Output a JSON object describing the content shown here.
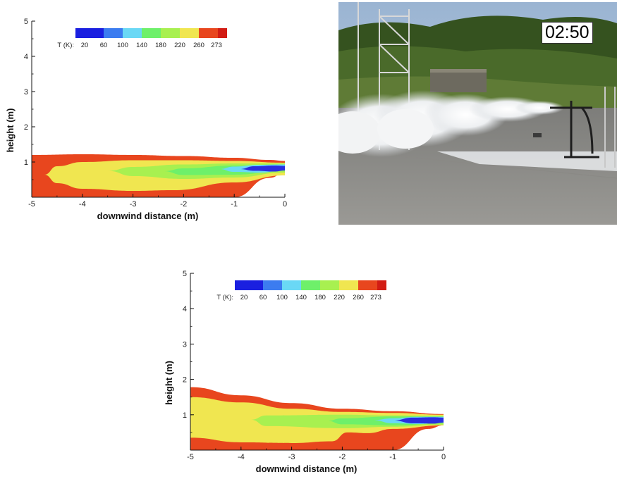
{
  "chart_data": [
    {
      "type": "heatmap",
      "xlabel": "downwind distance (m)",
      "ylabel": "height (m)",
      "xlim": [
        -5,
        0
      ],
      "ylim": [
        0,
        5
      ],
      "xticks": [
        -5,
        -4,
        -3,
        -2,
        -1,
        0
      ],
      "yticks": [
        1,
        2,
        3,
        4,
        5
      ],
      "legend": {
        "title": "T (K):",
        "levels": [
          20,
          60,
          100,
          140,
          180,
          220,
          260,
          273
        ],
        "colors": [
          "#1a1fe0",
          "#3c7cf0",
          "#6ad8f5",
          "#6ef06a",
          "#a8f050",
          "#f0e650",
          "#e8461e",
          "#d21c14"
        ],
        "placement": "top-left"
      },
      "contours": [
        {
          "level": 273,
          "color": "#e8461e",
          "top": [
            [
              -5,
              1.2
            ],
            [
              -4,
              1.22
            ],
            [
              -3,
              1.2
            ],
            [
              -2,
              1.17
            ],
            [
              -1,
              1.12
            ],
            [
              -0.3,
              1.06
            ],
            [
              0,
              1.03
            ]
          ],
          "bottom": [
            [
              -5,
              0.0
            ],
            [
              -4,
              0.0
            ],
            [
              -3,
              0.0
            ],
            [
              -2,
              0.0
            ],
            [
              -1,
              0.0
            ],
            [
              -0.3,
              0.55
            ],
            [
              0,
              0.7
            ]
          ]
        },
        {
          "level": 260,
          "color": "#f0e650",
          "top": [
            [
              -4.75,
              0.64
            ],
            [
              -4.5,
              0.88
            ],
            [
              -4,
              1.0
            ],
            [
              -3,
              1.05
            ],
            [
              -2,
              1.05
            ],
            [
              -1,
              1.03
            ],
            [
              0,
              0.98
            ]
          ],
          "bottom": [
            [
              -4.75,
              0.64
            ],
            [
              -4.5,
              0.4
            ],
            [
              -4,
              0.24
            ],
            [
              -3,
              0.18
            ],
            [
              -2.2,
              0.2
            ],
            [
              -1,
              0.42
            ],
            [
              0,
              0.62
            ]
          ]
        },
        {
          "level": 220,
          "color": "#a8f050",
          "top": [
            [
              -3.5,
              0.75
            ],
            [
              -3,
              0.86
            ],
            [
              -2,
              0.93
            ],
            [
              -1,
              0.96
            ],
            [
              0,
              0.96
            ]
          ],
          "bottom": [
            [
              -3.5,
              0.75
            ],
            [
              -3,
              0.6
            ],
            [
              -2,
              0.52
            ],
            [
              -1,
              0.56
            ],
            [
              0,
              0.7
            ]
          ]
        },
        {
          "level": 180,
          "color": "#6ef06a",
          "top": [
            [
              -2.4,
              0.74
            ],
            [
              -2,
              0.82
            ],
            [
              -1,
              0.9
            ],
            [
              0,
              0.93
            ]
          ],
          "bottom": [
            [
              -2.4,
              0.74
            ],
            [
              -2,
              0.63
            ],
            [
              -1,
              0.64
            ],
            [
              0,
              0.75
            ]
          ]
        },
        {
          "level": 100,
          "color": "#6ad8f5",
          "top": [
            [
              -1.3,
              0.8
            ],
            [
              -1,
              0.87
            ],
            [
              -0.5,
              0.92
            ],
            [
              0,
              0.93
            ]
          ],
          "bottom": [
            [
              -1.3,
              0.8
            ],
            [
              -1,
              0.72
            ],
            [
              -0.5,
              0.7
            ],
            [
              0,
              0.76
            ]
          ]
        },
        {
          "level": 20,
          "color": "#2a2ee0",
          "top": [
            [
              -0.9,
              0.8
            ],
            [
              -0.6,
              0.88
            ],
            [
              -0.2,
              0.9
            ],
            [
              0,
              0.89
            ]
          ],
          "bottom": [
            [
              -0.9,
              0.8
            ],
            [
              -0.6,
              0.75
            ],
            [
              -0.2,
              0.73
            ],
            [
              0,
              0.76
            ]
          ]
        }
      ]
    },
    {
      "type": "heatmap",
      "xlabel": "downwind distance (m)",
      "ylabel": "height (m)",
      "xlim": [
        -5,
        0
      ],
      "ylim": [
        0,
        5
      ],
      "xticks": [
        -5,
        -4,
        -3,
        -2,
        -1,
        0
      ],
      "yticks": [
        1,
        2,
        3,
        4,
        5
      ],
      "legend": {
        "title": "T (K):",
        "levels": [
          20,
          60,
          100,
          140,
          180,
          220,
          260,
          273
        ],
        "colors": [
          "#1a1fe0",
          "#3c7cf0",
          "#6ad8f5",
          "#6ef06a",
          "#a8f050",
          "#f0e650",
          "#e8461e",
          "#d21c14"
        ],
        "placement": "top-left"
      },
      "contours": [
        {
          "level": 273,
          "color": "#e8461e",
          "top": [
            [
              -5,
              1.78
            ],
            [
              -4,
              1.55
            ],
            [
              -3,
              1.33
            ],
            [
              -2,
              1.17
            ],
            [
              -1,
              1.1
            ],
            [
              0,
              1.02
            ]
          ],
          "bottom": [
            [
              -5,
              0.0
            ],
            [
              -3,
              0.0
            ],
            [
              -2,
              0.0
            ],
            [
              -1,
              0.0
            ],
            [
              -0.3,
              0.6
            ],
            [
              0,
              0.7
            ]
          ]
        },
        {
          "level": 260,
          "color": "#f0e650",
          "top": [
            [
              -5,
              1.5
            ],
            [
              -4,
              1.35
            ],
            [
              -3,
              1.17
            ],
            [
              -2,
              1.08
            ],
            [
              -1,
              1.05
            ],
            [
              0,
              1.0
            ]
          ],
          "bottom": [
            [
              -5,
              0.35
            ],
            [
              -4,
              0.22
            ],
            [
              -3,
              0.2
            ],
            [
              -2.2,
              0.25
            ],
            [
              -1.9,
              0.5
            ],
            [
              -1.5,
              0.48
            ],
            [
              -1,
              0.6
            ],
            [
              0,
              0.7
            ]
          ]
        },
        {
          "level": 220,
          "color": "#a8f050",
          "top": [
            [
              -3.8,
              0.86
            ],
            [
              -3.5,
              0.98
            ],
            [
              -2,
              1.0
            ],
            [
              -1,
              0.98
            ],
            [
              0,
              0.97
            ]
          ],
          "bottom": [
            [
              -3.8,
              0.86
            ],
            [
              -3.5,
              0.68
            ],
            [
              -2,
              0.62
            ],
            [
              -1,
              0.66
            ],
            [
              0,
              0.72
            ]
          ]
        },
        {
          "level": 180,
          "color": "#6ef06a",
          "top": [
            [
              -2.3,
              0.83
            ],
            [
              -2,
              0.9
            ],
            [
              -1,
              0.95
            ],
            [
              0,
              0.95
            ]
          ],
          "bottom": [
            [
              -2.3,
              0.83
            ],
            [
              -2,
              0.73
            ],
            [
              -1,
              0.7
            ],
            [
              0,
              0.76
            ]
          ]
        },
        {
          "level": 100,
          "color": "#6ad8f5",
          "top": [
            [
              -1.4,
              0.85
            ],
            [
              -1,
              0.9
            ],
            [
              -0.5,
              0.94
            ],
            [
              0,
              0.94
            ]
          ],
          "bottom": [
            [
              -1.4,
              0.85
            ],
            [
              -1,
              0.76
            ],
            [
              -0.5,
              0.74
            ],
            [
              0,
              0.78
            ]
          ]
        },
        {
          "level": 20,
          "color": "#2a2ee0",
          "top": [
            [
              -1.0,
              0.84
            ],
            [
              -0.6,
              0.92
            ],
            [
              -0.2,
              0.93
            ],
            [
              0,
              0.92
            ]
          ],
          "bottom": [
            [
              -1.0,
              0.84
            ],
            [
              -0.6,
              0.76
            ],
            [
              -0.2,
              0.75
            ],
            [
              0,
              0.78
            ]
          ]
        }
      ]
    }
  ],
  "photo": {
    "timestamp": "02:50"
  }
}
